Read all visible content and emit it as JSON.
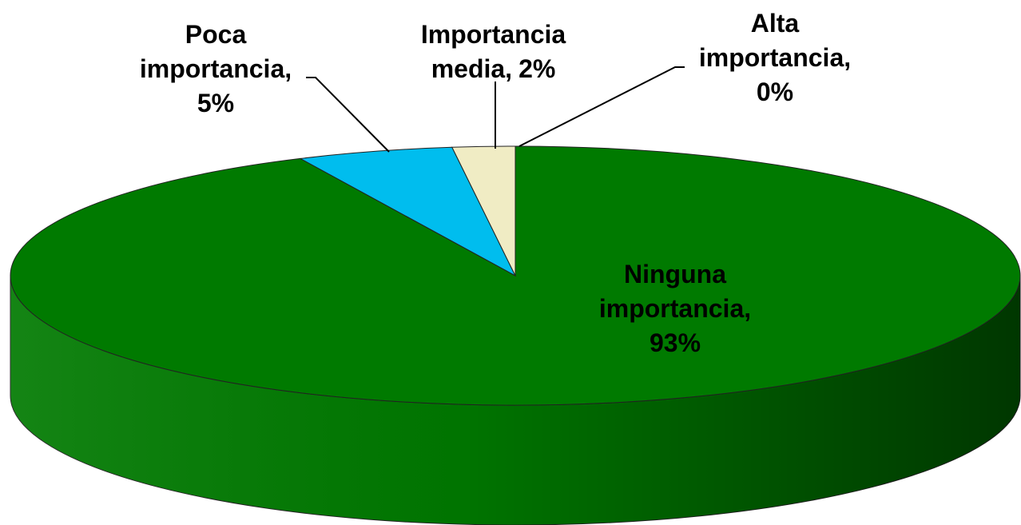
{
  "chart_data": {
    "type": "pie",
    "categories": [
      "Ninguna importancia",
      "Poca importancia",
      "Importancia media",
      "Alta importancia"
    ],
    "values": [
      93,
      5,
      2,
      0
    ],
    "value_labels": [
      "93%",
      "5%",
      "2%",
      "0%"
    ],
    "colors": [
      "#007a00",
      "#00bdee",
      "#f0ecc4",
      null
    ]
  }
}
